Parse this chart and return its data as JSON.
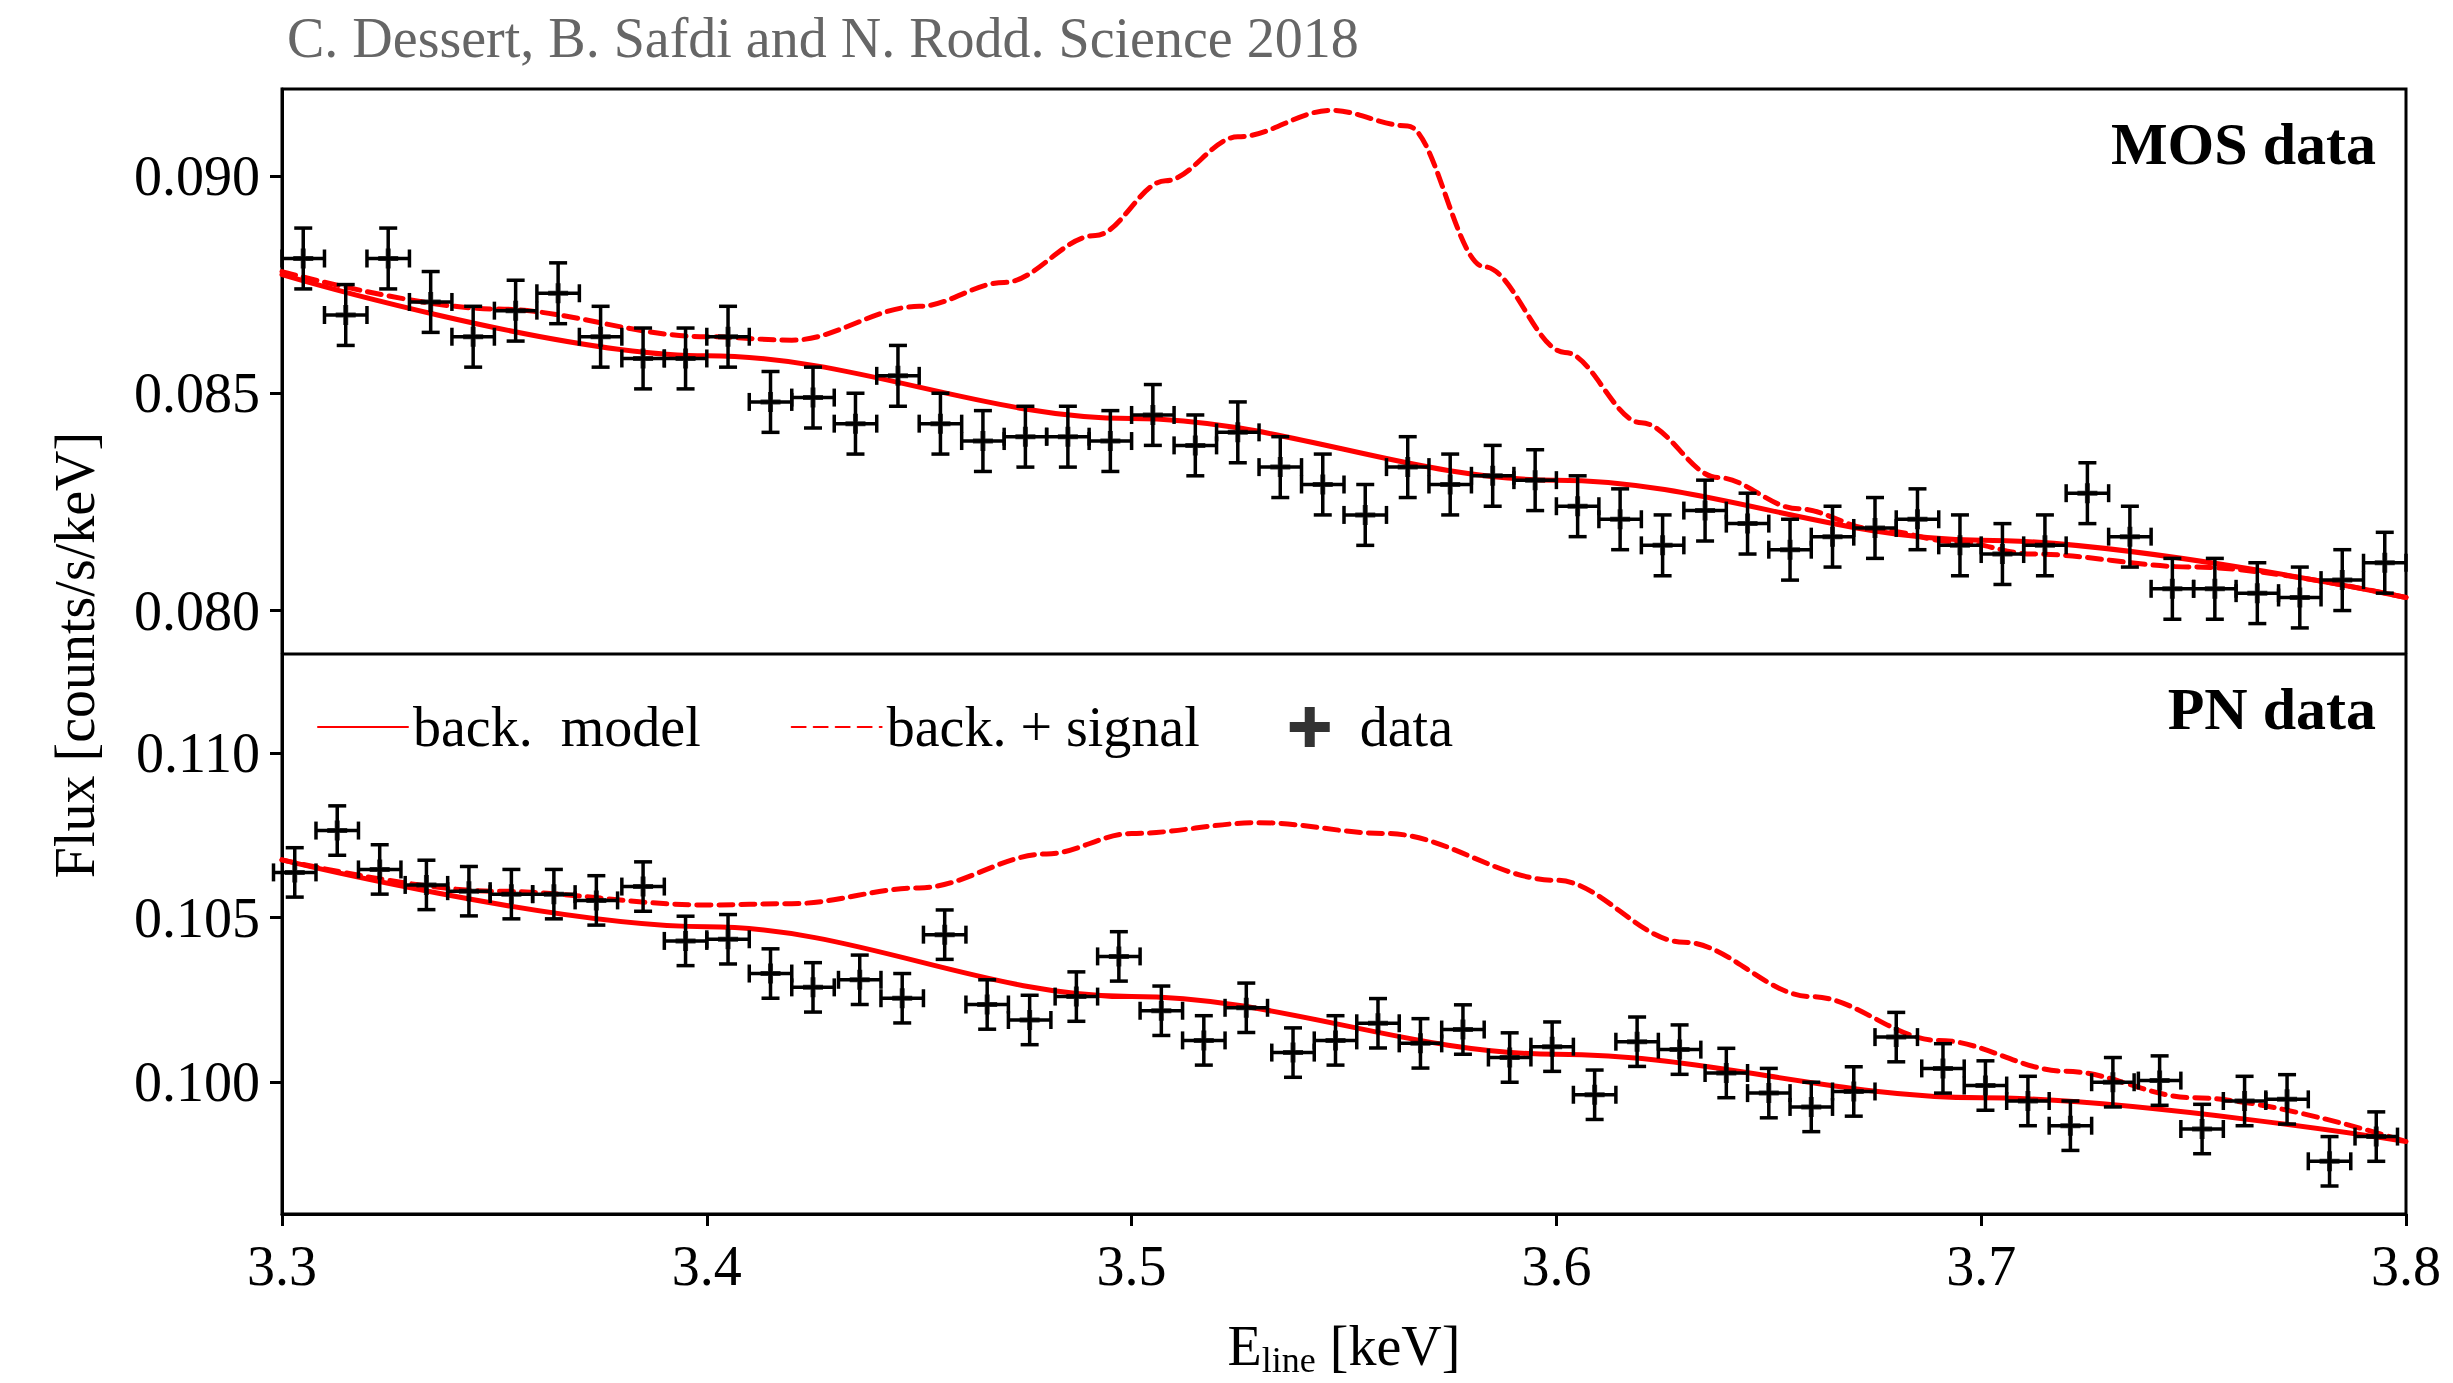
{
  "chart_data": [
    {
      "type": "scatter",
      "title": "C. Dessert, B. Safdi and N. Rodd. Science 2018",
      "ylabel": "Flux [counts/s/keV]",
      "annotations": [
        "MOS data"
      ],
      "xlim": [
        3.3,
        3.8
      ],
      "xticks": [
        3.3,
        3.4,
        3.5,
        3.6,
        3.7,
        3.8
      ],
      "ylim": [
        0.079,
        0.092
      ],
      "yticks": [
        {
          "value": 0.08,
          "label": "0.080"
        },
        {
          "value": 0.085,
          "label": "0.085"
        },
        {
          "value": 0.09,
          "label": "0.090"
        }
      ],
      "tick_labels": "y",
      "grid": false,
      "legend": false,
      "series": [
        {
          "type": "line",
          "color": "#ff0000",
          "line_style": "solid",
          "x": [
            3.3,
            3.4,
            3.5,
            3.6,
            3.7,
            3.8
          ],
          "values": [
            0.08773,
            0.08586,
            0.08442,
            0.083,
            0.08162,
            0.0803
          ]
        },
        {
          "type": "line",
          "color": "#ff0000",
          "line_style": "dashed",
          "x": [
            3.3,
            3.35,
            3.4,
            3.42,
            3.45,
            3.47,
            3.4915,
            3.508,
            3.525,
            3.547,
            3.565,
            3.583,
            3.602,
            3.62,
            3.638,
            3.657,
            3.675,
            3.694,
            3.712,
            3.75,
            3.8
          ],
          "values": [
            0.0878,
            0.08694,
            0.0863,
            0.08622,
            0.087,
            0.08755,
            0.08863,
            0.08989,
            0.0909,
            0.09151,
            0.09115,
            0.08791,
            0.08594,
            0.08432,
            0.08306,
            0.08234,
            0.08187,
            0.08158,
            0.0813,
            0.081,
            0.0803
          ]
        },
        {
          "color": "#000000",
          "marker": "cross",
          "x": [
            3.305,
            3.315,
            3.325,
            3.335,
            3.345,
            3.355,
            3.365,
            3.375,
            3.385,
            3.395,
            3.405,
            3.415,
            3.425,
            3.435,
            3.445,
            3.455,
            3.465,
            3.475,
            3.485,
            3.495,
            3.505,
            3.515,
            3.525,
            3.535,
            3.545,
            3.555,
            3.565,
            3.575,
            3.585,
            3.595,
            3.605,
            3.615,
            3.625,
            3.635,
            3.645,
            3.655,
            3.665,
            3.675,
            3.685,
            3.695,
            3.705,
            3.715,
            3.725,
            3.735,
            3.745,
            3.755,
            3.765,
            3.775,
            3.785,
            3.795
          ],
          "values": [
            0.0881,
            0.0868,
            0.0881,
            0.0871,
            0.0863,
            0.0869,
            0.0873,
            0.0863,
            0.0858,
            0.0858,
            0.0863,
            0.0848,
            0.0849,
            0.0843,
            0.0854,
            0.0843,
            0.0839,
            0.084,
            0.084,
            0.0839,
            0.0845,
            0.0838,
            0.0841,
            0.0833,
            0.0829,
            0.0822,
            0.0833,
            0.0829,
            0.0831,
            0.083,
            0.0824,
            0.0821,
            0.0815,
            0.0823,
            0.082,
            0.0814,
            0.0817,
            0.0819,
            0.0821,
            0.0815,
            0.0813,
            0.0815,
            0.0827,
            0.0817,
            0.0805,
            0.0805,
            0.0804,
            0.0803,
            0.0807,
            0.0811
          ],
          "errors": [
            0.0007,
            0.0007,
            0.0007,
            0.0007,
            0.0007,
            0.0007,
            0.0007,
            0.0007,
            0.0007,
            0.0007,
            0.0007,
            0.0007,
            0.0007,
            0.0007,
            0.0007,
            0.0007,
            0.0007,
            0.0007,
            0.0007,
            0.0007,
            0.0007,
            0.0007,
            0.0007,
            0.0007,
            0.0007,
            0.0007,
            0.0007,
            0.0007,
            0.0007,
            0.0007,
            0.0007,
            0.0007,
            0.0007,
            0.0007,
            0.0007,
            0.0007,
            0.0007,
            0.0007,
            0.0007,
            0.0007,
            0.0007,
            0.0007,
            0.0007,
            0.0007,
            0.0007,
            0.0007,
            0.0007,
            0.0007,
            0.0007,
            0.0007
          ],
          "xerrors": [
            0.005,
            0.005,
            0.005,
            0.005,
            0.005,
            0.005,
            0.005,
            0.005,
            0.005,
            0.005,
            0.005,
            0.005,
            0.005,
            0.005,
            0.005,
            0.005,
            0.005,
            0.005,
            0.005,
            0.005,
            0.005,
            0.005,
            0.005,
            0.005,
            0.005,
            0.005,
            0.005,
            0.005,
            0.005,
            0.005,
            0.005,
            0.005,
            0.005,
            0.005,
            0.005,
            0.005,
            0.005,
            0.005,
            0.005,
            0.005,
            0.005,
            0.005,
            0.005,
            0.005,
            0.005,
            0.005,
            0.005,
            0.005,
            0.005,
            0.005
          ]
        }
      ]
    },
    {
      "type": "scatter",
      "xlabel": "E$_{line}$ [keV]",
      "annotations": [
        "PN data"
      ],
      "xlim": [
        3.3,
        3.8
      ],
      "xticks": [
        3.3,
        3.4,
        3.5,
        3.6,
        3.7,
        3.8
      ],
      "ylim": [
        0.096,
        0.113
      ],
      "yticks": [
        {
          "value": 0.1,
          "label": "0.100"
        },
        {
          "value": 0.105,
          "label": "0.105"
        },
        {
          "value": 0.11,
          "label": "0.110"
        }
      ],
      "grid": false,
      "legend": "top left",
      "series": [
        {
          "type": "line",
          "name": "back.  model",
          "color": "#ff0000",
          "line_style": "solid",
          "x": [
            3.3,
            3.4,
            3.5,
            3.6,
            3.7,
            3.8
          ],
          "values": [
            0.10675,
            0.10472,
            0.1026,
            0.10085,
            0.09953,
            0.0982
          ]
        },
        {
          "type": "line",
          "name": "back. + signal",
          "color": "#ff0000",
          "line_style": "dashed",
          "x": [
            3.3,
            3.35,
            3.4,
            3.42,
            3.45,
            3.48,
            3.5,
            3.53,
            3.56,
            3.6,
            3.63,
            3.66,
            3.69,
            3.72,
            3.75,
            3.8
          ],
          "values": [
            0.10675,
            0.1058,
            0.10538,
            0.10542,
            0.1059,
            0.10693,
            0.10755,
            0.10788,
            0.10755,
            0.10613,
            0.10425,
            0.1026,
            0.10127,
            0.10033,
            0.09953,
            0.0982
          ]
        },
        {
          "name": "data",
          "color": "#000000",
          "marker": "cross",
          "x": [
            3.303,
            3.313,
            3.323,
            3.334,
            3.344,
            3.354,
            3.364,
            3.374,
            3.385,
            3.395,
            3.405,
            3.415,
            3.425,
            3.436,
            3.446,
            3.456,
            3.466,
            3.476,
            3.487,
            3.497,
            3.507,
            3.517,
            3.527,
            3.538,
            3.548,
            3.558,
            3.568,
            3.578,
            3.589,
            3.599,
            3.609,
            3.619,
            3.629,
            3.64,
            3.65,
            3.66,
            3.67,
            3.68,
            3.691,
            3.701,
            3.711,
            3.721,
            3.731,
            3.742,
            3.752,
            3.762,
            3.772,
            3.782,
            3.793
          ],
          "values": [
            0.10637,
            0.10764,
            0.10646,
            0.10599,
            0.1058,
            0.10571,
            0.10571,
            0.10552,
            0.10594,
            0.10429,
            0.10434,
            0.1033,
            0.10288,
            0.10311,
            0.10255,
            0.10448,
            0.10236,
            0.10189,
            0.1026,
            0.10382,
            0.10217,
            0.10127,
            0.10226,
            0.1009,
            0.10127,
            0.10179,
            0.10118,
            0.1016,
            0.10075,
            0.10108,
            0.09962,
            0.10123,
            0.10099,
            0.10028,
            0.09967,
            0.09925,
            0.09972,
            0.10137,
            0.10042,
            0.0999,
            0.09943,
            0.09868,
            0.1,
            0.10005,
            0.09858,
            0.09943,
            0.09948,
            0.0976,
            0.09835
          ],
          "errors": [
            0.00075,
            0.00075,
            0.00075,
            0.00075,
            0.00075,
            0.00075,
            0.00075,
            0.00075,
            0.00075,
            0.00075,
            0.00075,
            0.00075,
            0.00075,
            0.00075,
            0.00075,
            0.00075,
            0.00075,
            0.00075,
            0.00075,
            0.00075,
            0.00075,
            0.00075,
            0.00075,
            0.00075,
            0.00075,
            0.00075,
            0.00075,
            0.00075,
            0.00075,
            0.00075,
            0.00075,
            0.00075,
            0.00075,
            0.00075,
            0.00075,
            0.00075,
            0.00075,
            0.00075,
            0.00075,
            0.00075,
            0.00075,
            0.00075,
            0.00075,
            0.00075,
            0.00075,
            0.00075,
            0.00075,
            0.00075,
            0.00075
          ],
          "xerrors": [
            0.005,
            0.005,
            0.005,
            0.005,
            0.005,
            0.005,
            0.005,
            0.005,
            0.005,
            0.005,
            0.005,
            0.005,
            0.005,
            0.005,
            0.005,
            0.005,
            0.005,
            0.005,
            0.005,
            0.005,
            0.005,
            0.005,
            0.005,
            0.005,
            0.005,
            0.005,
            0.005,
            0.005,
            0.005,
            0.005,
            0.005,
            0.005,
            0.005,
            0.005,
            0.005,
            0.005,
            0.005,
            0.005,
            0.005,
            0.005,
            0.005,
            0.005,
            0.005,
            0.005,
            0.005,
            0.005,
            0.005,
            0.005,
            0.005
          ]
        }
      ]
    }
  ]
}
